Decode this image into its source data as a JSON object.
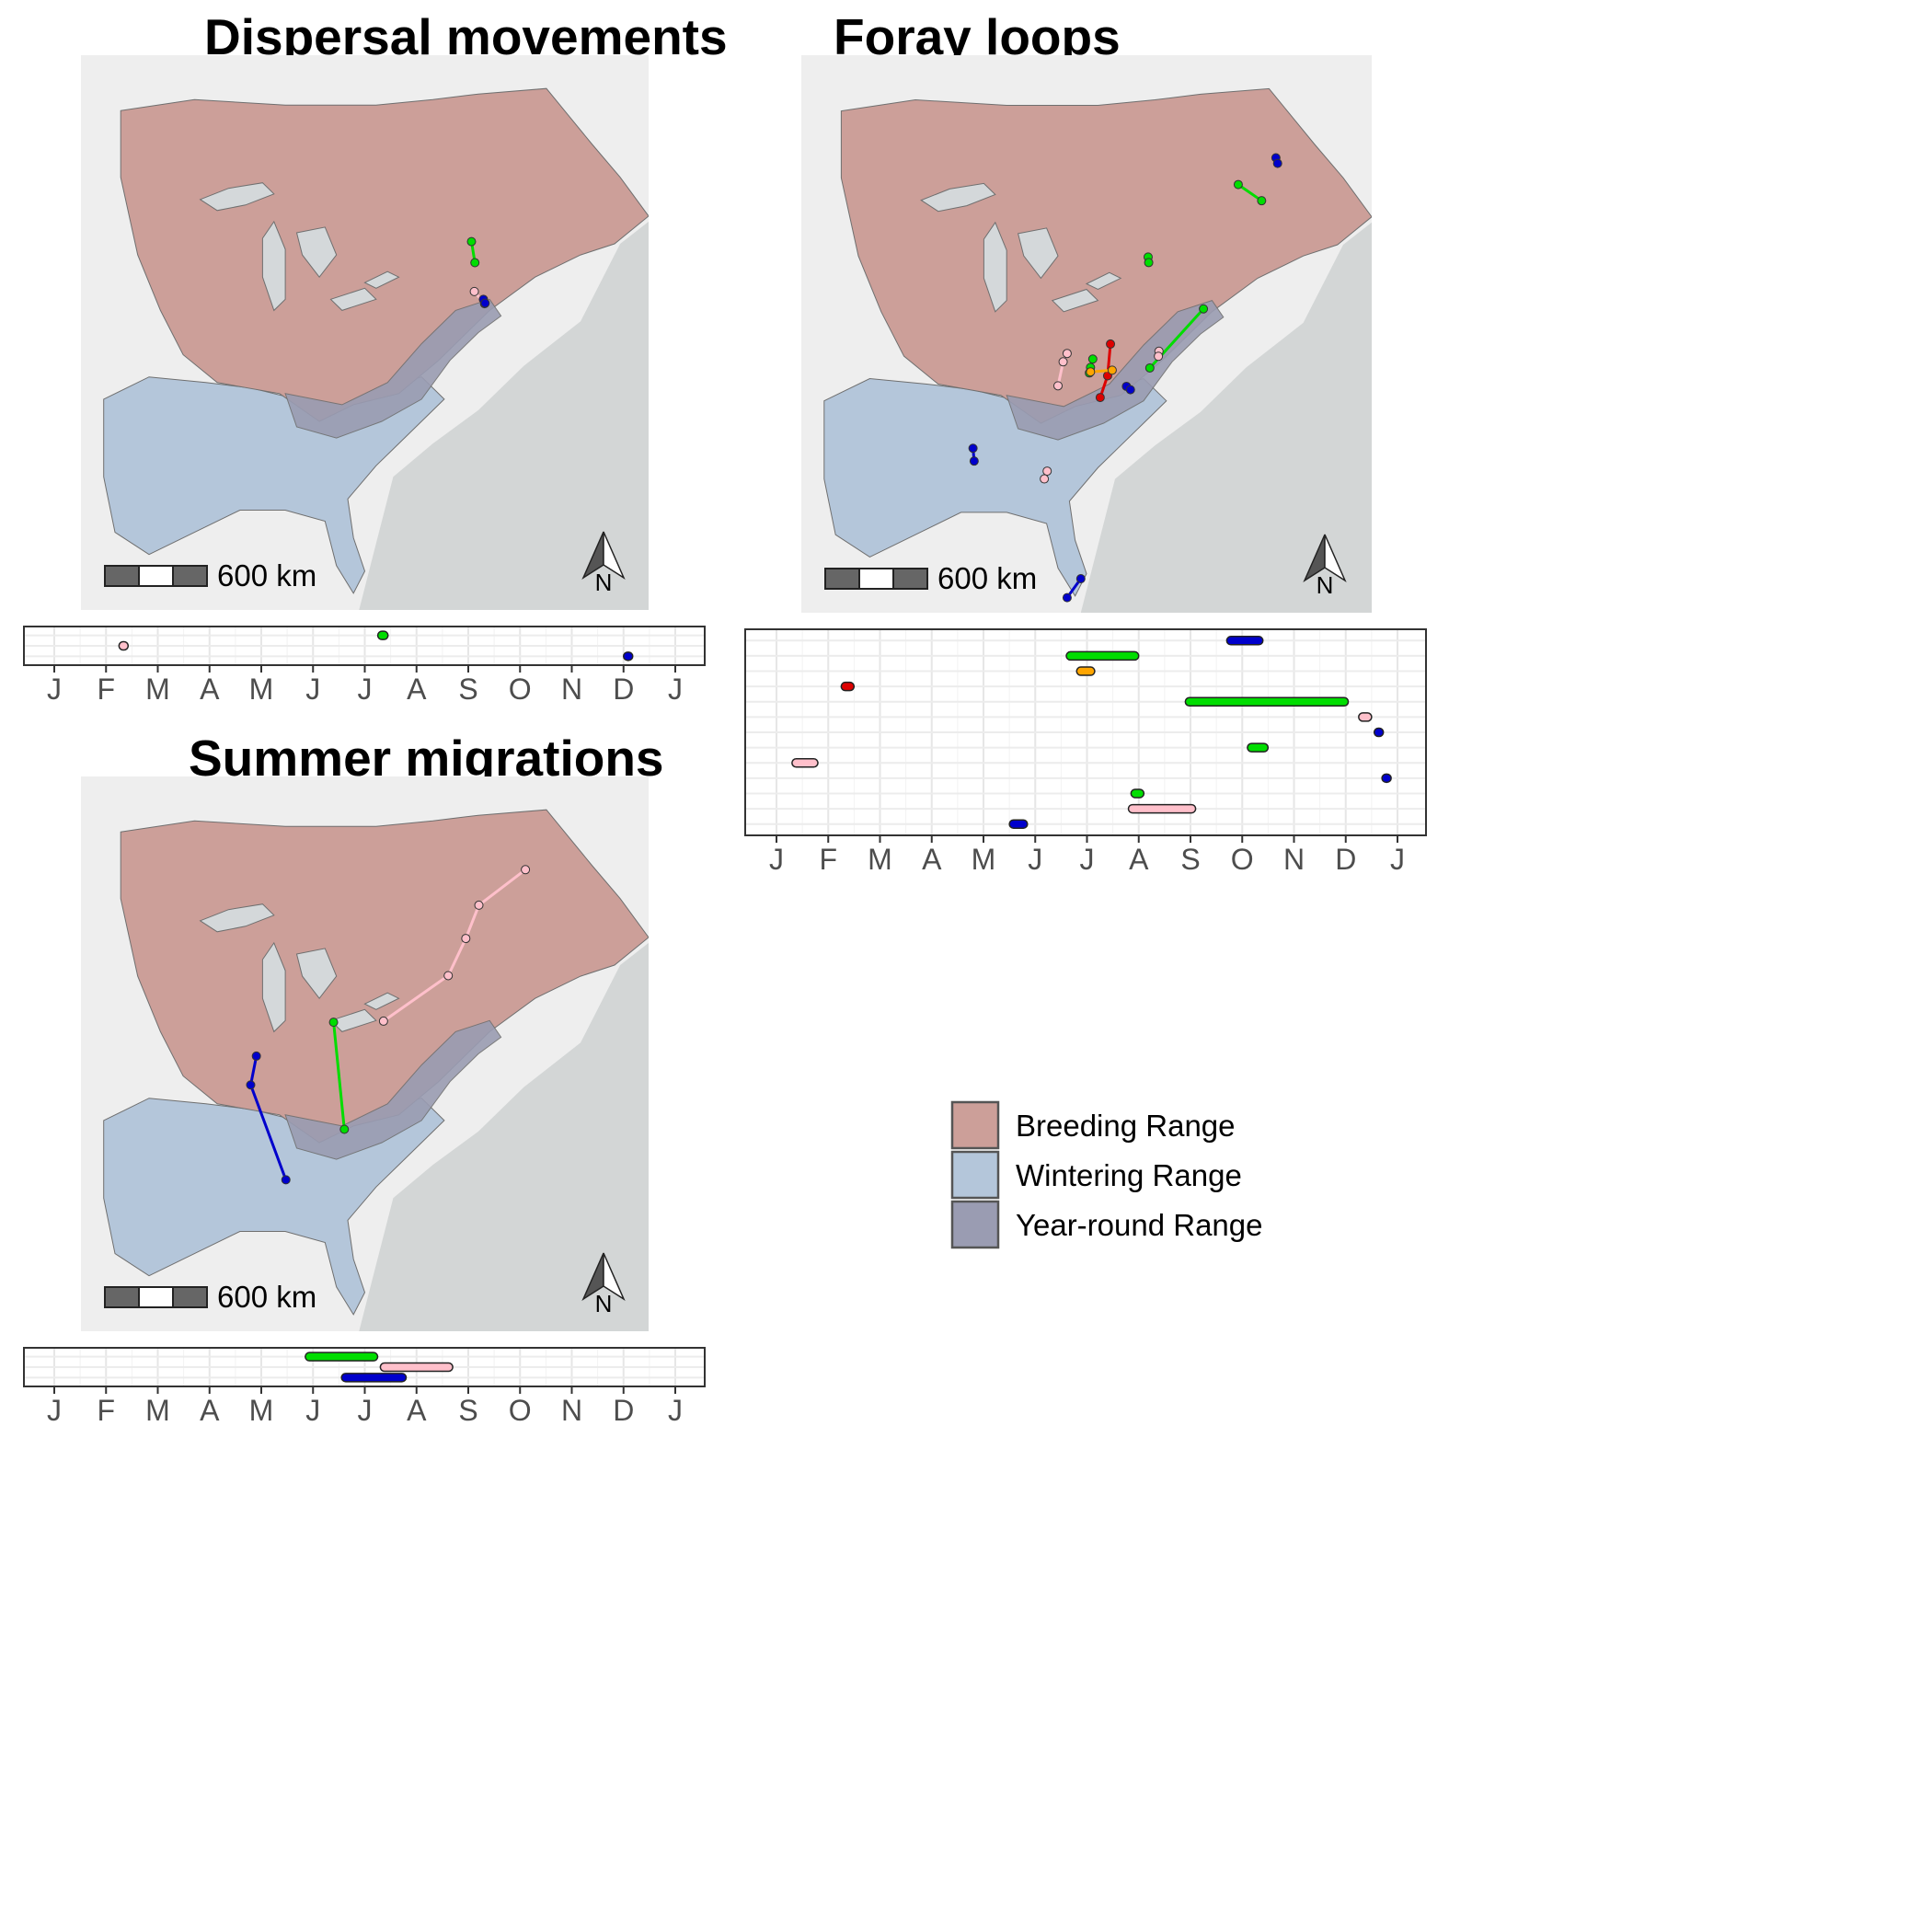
{
  "titles": {
    "dispersal": "Dispersal movements",
    "foray": "Foray loops",
    "summer": "Summer migrations"
  },
  "colors": {
    "background": "#ffffff",
    "ocean": "#d3d6d6",
    "land": "#eeeeee",
    "breeding": "#cc9f99",
    "wintering": "#b4c6da",
    "yearround": "#9a9cb2",
    "lakes": "#d4d8da",
    "green": "#00dd00",
    "blue": "#0000cc",
    "pink": "#ffc0cb",
    "red": "#dd0000",
    "orange": "#ffa500"
  },
  "scale_bar": {
    "label": "600 km"
  },
  "north_arrow": {
    "label": "N",
    "icon": "north-arrow-icon"
  },
  "months": [
    "J",
    "F",
    "M",
    "A",
    "M",
    "J",
    "J",
    "A",
    "S",
    "O",
    "N",
    "D",
    "J"
  ],
  "legend": {
    "items": [
      {
        "label": "Breeding Range",
        "color": "#cc9f99"
      },
      {
        "label": "Wintering Range",
        "color": "#b4c6da"
      },
      {
        "label": "Year-round Range",
        "color": "#9a9cb2"
      }
    ]
  },
  "chart_data": [
    {
      "type": "timeline",
      "title": "Dispersal movements",
      "x_unit": "month",
      "xlim": [
        0,
        12
      ],
      "rows": 3,
      "segments": [
        {
          "color": "green",
          "row": 0,
          "start": 6.25,
          "end": 6.45
        },
        {
          "color": "pink",
          "row": 1,
          "start": 1.25,
          "end": 1.4
        },
        {
          "color": "blue",
          "row": 2,
          "start": 11.0,
          "end": 11.1
        }
      ]
    },
    {
      "type": "timeline",
      "title": "Foray loops",
      "x_unit": "month",
      "xlim": [
        0,
        12
      ],
      "rows": 13,
      "segments": [
        {
          "color": "blue",
          "row": 0,
          "start": 8.7,
          "end": 9.4
        },
        {
          "color": "green",
          "row": 1,
          "start": 5.6,
          "end": 7.0
        },
        {
          "color": "orange",
          "row": 2,
          "start": 5.8,
          "end": 6.15
        },
        {
          "color": "red",
          "row": 3,
          "start": 1.25,
          "end": 1.5
        },
        {
          "color": "green",
          "row": 4,
          "start": 7.9,
          "end": 11.05
        },
        {
          "color": "pink",
          "row": 5,
          "start": 11.25,
          "end": 11.5
        },
        {
          "color": "blue",
          "row": 6,
          "start": 11.55,
          "end": 11.7
        },
        {
          "color": "green",
          "row": 7,
          "start": 9.1,
          "end": 9.5
        },
        {
          "color": "pink",
          "row": 8,
          "start": 0.3,
          "end": 0.8
        },
        {
          "color": "blue",
          "row": 9,
          "start": 11.7,
          "end": 11.85
        },
        {
          "color": "green",
          "row": 10,
          "start": 6.85,
          "end": 7.1
        },
        {
          "color": "pink",
          "row": 11,
          "start": 6.8,
          "end": 8.1
        },
        {
          "color": "blue",
          "row": 12,
          "start": 4.5,
          "end": 4.85
        }
      ]
    },
    {
      "type": "timeline",
      "title": "Summer migrations",
      "x_unit": "month",
      "xlim": [
        0,
        12
      ],
      "rows": 3,
      "segments": [
        {
          "color": "green",
          "row": 0,
          "start": 4.85,
          "end": 6.25
        },
        {
          "color": "pink",
          "row": 1,
          "start": 6.3,
          "end": 7.7
        },
        {
          "color": "blue",
          "row": 2,
          "start": 5.55,
          "end": 6.8
        }
      ]
    }
  ],
  "tracks": {
    "dispersal": [
      {
        "color": "green",
        "points": [
          [
            0.688,
            0.336
          ],
          [
            0.694,
            0.374
          ]
        ]
      },
      {
        "color": "pink",
        "points": [
          [
            0.693,
            0.426
          ],
          [
            0.711,
            0.448
          ]
        ]
      },
      {
        "color": "blue",
        "points": [
          [
            0.709,
            0.44
          ],
          [
            0.712,
            0.447
          ]
        ]
      }
    ],
    "foray": [
      {
        "color": "blue",
        "points": [
          [
            0.832,
            0.184
          ],
          [
            0.835,
            0.194
          ]
        ]
      },
      {
        "color": "green",
        "points": [
          [
            0.766,
            0.232
          ],
          [
            0.807,
            0.261
          ]
        ]
      },
      {
        "color": "green",
        "points": [
          [
            0.608,
            0.362
          ],
          [
            0.609,
            0.372
          ]
        ]
      },
      {
        "color": "green",
        "points": [
          [
            0.705,
            0.455
          ],
          [
            0.611,
            0.561
          ]
        ]
      },
      {
        "color": "pink",
        "points": [
          [
            0.466,
            0.535
          ],
          [
            0.459,
            0.55
          ],
          [
            0.45,
            0.593
          ]
        ]
      },
      {
        "color": "red",
        "points": [
          [
            0.542,
            0.518
          ],
          [
            0.537,
            0.575
          ],
          [
            0.524,
            0.614
          ]
        ]
      },
      {
        "color": "green",
        "points": [
          [
            0.511,
            0.545
          ],
          [
            0.507,
            0.56
          ],
          [
            0.505,
            0.57
          ]
        ]
      },
      {
        "color": "orange",
        "points": [
          [
            0.507,
            0.568
          ],
          [
            0.545,
            0.565
          ]
        ]
      },
      {
        "color": "pink",
        "points": [
          [
            0.627,
            0.531
          ],
          [
            0.626,
            0.54
          ]
        ]
      },
      {
        "color": "blue",
        "points": [
          [
            0.57,
            0.594
          ],
          [
            0.577,
            0.6
          ]
        ]
      },
      {
        "color": "blue",
        "points": [
          [
            0.301,
            0.705
          ],
          [
            0.303,
            0.728
          ]
        ]
      },
      {
        "color": "pink",
        "points": [
          [
            0.431,
            0.746
          ],
          [
            0.426,
            0.76
          ]
        ]
      },
      {
        "color": "blue",
        "points": [
          [
            0.49,
            0.939
          ],
          [
            0.466,
            0.973
          ]
        ]
      }
    ],
    "summer": [
      {
        "color": "pink",
        "points": [
          [
            0.783,
            0.168
          ],
          [
            0.701,
            0.232
          ],
          [
            0.678,
            0.292
          ],
          [
            0.647,
            0.359
          ],
          [
            0.533,
            0.441
          ]
        ]
      },
      {
        "color": "green",
        "points": [
          [
            0.445,
            0.443
          ],
          [
            0.464,
            0.636
          ]
        ]
      },
      {
        "color": "blue",
        "points": [
          [
            0.309,
            0.504
          ],
          [
            0.299,
            0.556
          ],
          [
            0.361,
            0.727
          ]
        ]
      }
    ]
  }
}
